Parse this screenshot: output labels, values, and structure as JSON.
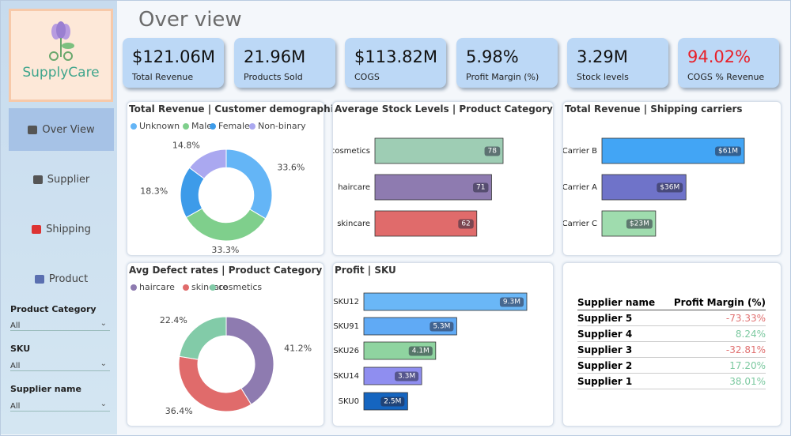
{
  "header": {
    "title": "Over view"
  },
  "sidebar": {
    "logo": "SupplyCare",
    "nav": [
      "Over View",
      "Supplier",
      "Shipping",
      "Product"
    ],
    "filters": [
      {
        "label": "Product Category",
        "value": "All"
      },
      {
        "label": "SKU",
        "value": "All"
      },
      {
        "label": "Supplier name",
        "value": "All"
      }
    ]
  },
  "kpis": [
    {
      "value": "$121.06M",
      "label": "Total Revenue",
      "color": "#111111"
    },
    {
      "value": "21.96M",
      "label": "Products Sold",
      "color": "#111111"
    },
    {
      "value": "$113.82M",
      "label": "COGS",
      "color": "#111111"
    },
    {
      "value": "5.98%",
      "label": "Profit Margin (%)",
      "color": "#111111"
    },
    {
      "value": "3.29M",
      "label": "Stock levels",
      "color": "#111111"
    },
    {
      "value": "94.02%",
      "label": "COGS % Revenue",
      "color": "#e8202a"
    }
  ],
  "chart_data": [
    {
      "type": "donut",
      "title": "Total Revenue | Customer demographics",
      "categories": [
        "Unknown",
        "Male",
        "Female",
        "Non-binary"
      ],
      "values": [
        33.6,
        33.3,
        18.3,
        14.8
      ],
      "value_labels": [
        "33.6%",
        "33.3%",
        "18.3%",
        "14.8%"
      ],
      "colors": [
        "#64b5f6",
        "#7fcf8c",
        "#3d9be9",
        "#aaa8f0"
      ]
    },
    {
      "type": "bar",
      "title": "Average Stock Levels | Product Category",
      "categories": [
        "cosmetics",
        "haircare",
        "skincare"
      ],
      "values": [
        78,
        71,
        62
      ],
      "colors": [
        "#9ecdb4",
        "#8e7bb0",
        "#e06b6b"
      ]
    },
    {
      "type": "bar",
      "title": "Total Revenue | Shipping carriers",
      "categories": [
        "Carrier B",
        "Carrier A",
        "Carrier C"
      ],
      "values": [
        61,
        36,
        23
      ],
      "value_labels": [
        "$61M",
        "$36M",
        "$23M"
      ],
      "colors": [
        "#42a5f5",
        "#6f73c9",
        "#9fdcae"
      ]
    },
    {
      "type": "donut",
      "title": "Avg Defect rates | Product Category",
      "categories": [
        "haircare",
        "skincare",
        "cosmetics"
      ],
      "values": [
        41.2,
        36.4,
        22.4
      ],
      "value_labels": [
        "41.2%",
        "36.4%",
        "22.4%"
      ],
      "colors": [
        "#8e7bb0",
        "#e06b6b",
        "#82cba8"
      ]
    },
    {
      "type": "bar",
      "title": "Profit | SKU",
      "categories": [
        "SKU12",
        "SKU91",
        "SKU26",
        "SKU14",
        "SKU0"
      ],
      "values": [
        9.3,
        5.3,
        4.1,
        3.3,
        2.5
      ],
      "value_labels": [
        "9.3M",
        "5.3M",
        "4.1M",
        "3.3M",
        "2.5M"
      ],
      "colors": [
        "#6ab7f7",
        "#60aaf5",
        "#8fd4a0",
        "#8f8ef0",
        "#1565c0"
      ]
    }
  ],
  "table": {
    "columns": [
      "Supplier name",
      "Profit Margin (%)"
    ],
    "rows": [
      [
        "Supplier 5",
        "-73.33%"
      ],
      [
        "Supplier 4",
        "8.24%"
      ],
      [
        "Supplier 3",
        "-32.81%"
      ],
      [
        "Supplier 2",
        "17.20%"
      ],
      [
        "Supplier 1",
        "38.01%"
      ]
    ]
  }
}
